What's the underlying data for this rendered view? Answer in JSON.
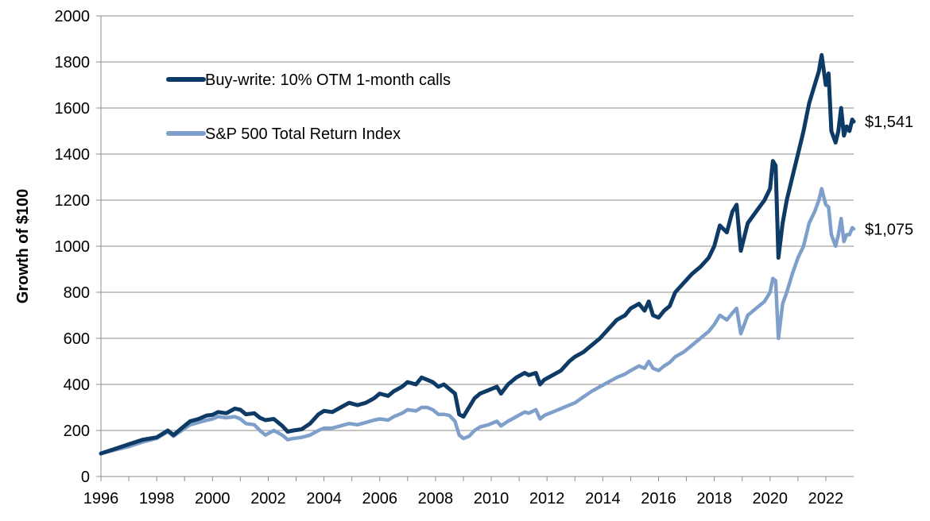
{
  "chart_data": {
    "type": "line",
    "title": "",
    "xlabel": "",
    "ylabel": "Growth of $100",
    "xlim": [
      1996,
      2023
    ],
    "ylim": [
      0,
      2000
    ],
    "x_ticks": [
      "1996",
      "1998",
      "2000",
      "2002",
      "2004",
      "2006",
      "2008",
      "2010",
      "2012",
      "2014",
      "2016",
      "2018",
      "2020",
      "2022"
    ],
    "y_ticks": [
      "0",
      "200",
      "400",
      "600",
      "800",
      "1000",
      "1200",
      "1400",
      "1600",
      "1800",
      "2000"
    ],
    "grid": "horizontal",
    "legend_position": "top-left",
    "series": [
      {
        "name": "Buy-write: 10% OTM 1-month calls",
        "color": "#0e3a66",
        "end_label": "$1,541",
        "x": [
          1996.0,
          1996.5,
          1997.0,
          1997.5,
          1998.0,
          1998.4,
          1998.6,
          1998.9,
          1999.2,
          1999.5,
          1999.8,
          2000.0,
          2000.2,
          2000.5,
          2000.8,
          2001.0,
          2001.2,
          2001.5,
          2001.7,
          2001.9,
          2002.2,
          2002.5,
          2002.7,
          2002.9,
          2003.2,
          2003.5,
          2003.8,
          2004.0,
          2004.3,
          2004.6,
          2004.9,
          2005.2,
          2005.5,
          2005.8,
          2006.0,
          2006.3,
          2006.5,
          2006.8,
          2007.0,
          2007.3,
          2007.5,
          2007.7,
          2007.9,
          2008.1,
          2008.3,
          2008.5,
          2008.7,
          2008.85,
          2009.0,
          2009.2,
          2009.4,
          2009.6,
          2009.9,
          2010.2,
          2010.35,
          2010.6,
          2010.9,
          2011.2,
          2011.35,
          2011.6,
          2011.75,
          2011.9,
          2012.2,
          2012.5,
          2012.8,
          2013.0,
          2013.3,
          2013.6,
          2013.9,
          2014.2,
          2014.5,
          2014.8,
          2015.0,
          2015.3,
          2015.5,
          2015.65,
          2015.8,
          2016.0,
          2016.2,
          2016.4,
          2016.6,
          2016.9,
          2017.2,
          2017.5,
          2017.8,
          2018.0,
          2018.2,
          2018.45,
          2018.65,
          2018.8,
          2018.95,
          2019.2,
          2019.5,
          2019.8,
          2020.0,
          2020.1,
          2020.2,
          2020.3,
          2020.45,
          2020.6,
          2020.8,
          2021.0,
          2021.2,
          2021.4,
          2021.6,
          2021.75,
          2021.85,
          2022.0,
          2022.1,
          2022.2,
          2022.35,
          2022.45,
          2022.55,
          2022.65,
          2022.75,
          2022.85,
          2022.95,
          2023.0
        ],
        "values": [
          100,
          120,
          140,
          160,
          170,
          200,
          180,
          210,
          240,
          250,
          265,
          268,
          280,
          275,
          295,
          290,
          270,
          275,
          255,
          245,
          250,
          220,
          195,
          200,
          205,
          230,
          270,
          285,
          280,
          300,
          320,
          310,
          320,
          340,
          360,
          350,
          370,
          390,
          410,
          400,
          430,
          420,
          410,
          390,
          400,
          380,
          360,
          270,
          260,
          300,
          340,
          360,
          375,
          390,
          360,
          400,
          430,
          450,
          440,
          450,
          400,
          420,
          440,
          460,
          500,
          520,
          540,
          570,
          600,
          640,
          680,
          700,
          730,
          750,
          720,
          760,
          700,
          690,
          720,
          740,
          800,
          840,
          880,
          910,
          950,
          1000,
          1090,
          1060,
          1150,
          1180,
          980,
          1100,
          1150,
          1200,
          1250,
          1370,
          1350,
          950,
          1100,
          1200,
          1300,
          1400,
          1500,
          1620,
          1700,
          1760,
          1830,
          1700,
          1750,
          1500,
          1450,
          1500,
          1600,
          1480,
          1520,
          1500,
          1550,
          1541
        ]
      },
      {
        "name": "S&P 500 Total Return Index",
        "color": "#7f9fcb",
        "end_label": "$1,075",
        "x": [
          1996.0,
          1996.5,
          1997.0,
          1997.5,
          1998.0,
          1998.4,
          1998.6,
          1998.9,
          1999.2,
          1999.5,
          1999.8,
          2000.0,
          2000.2,
          2000.5,
          2000.8,
          2001.0,
          2001.2,
          2001.5,
          2001.7,
          2001.9,
          2002.2,
          2002.5,
          2002.7,
          2002.9,
          2003.2,
          2003.5,
          2003.8,
          2004.0,
          2004.3,
          2004.6,
          2004.9,
          2005.2,
          2005.5,
          2005.8,
          2006.0,
          2006.3,
          2006.5,
          2006.8,
          2007.0,
          2007.3,
          2007.5,
          2007.7,
          2007.9,
          2008.1,
          2008.3,
          2008.5,
          2008.7,
          2008.85,
          2009.0,
          2009.2,
          2009.4,
          2009.6,
          2009.9,
          2010.2,
          2010.35,
          2010.6,
          2010.9,
          2011.2,
          2011.35,
          2011.6,
          2011.75,
          2011.9,
          2012.2,
          2012.5,
          2012.8,
          2013.0,
          2013.3,
          2013.6,
          2013.9,
          2014.2,
          2014.5,
          2014.8,
          2015.0,
          2015.3,
          2015.5,
          2015.65,
          2015.8,
          2016.0,
          2016.2,
          2016.4,
          2016.6,
          2016.9,
          2017.2,
          2017.5,
          2017.8,
          2018.0,
          2018.2,
          2018.45,
          2018.65,
          2018.8,
          2018.95,
          2019.2,
          2019.5,
          2019.8,
          2020.0,
          2020.1,
          2020.2,
          2020.3,
          2020.45,
          2020.6,
          2020.8,
          2021.0,
          2021.2,
          2021.4,
          2021.6,
          2021.75,
          2021.85,
          2022.0,
          2022.1,
          2022.2,
          2022.35,
          2022.45,
          2022.55,
          2022.65,
          2022.75,
          2022.85,
          2022.95,
          2023.0
        ],
        "values": [
          100,
          115,
          130,
          150,
          165,
          195,
          175,
          200,
          225,
          235,
          245,
          250,
          260,
          255,
          260,
          250,
          230,
          225,
          200,
          180,
          200,
          180,
          160,
          165,
          170,
          180,
          200,
          210,
          210,
          220,
          230,
          225,
          235,
          245,
          250,
          245,
          260,
          275,
          290,
          285,
          300,
          300,
          290,
          270,
          270,
          265,
          240,
          180,
          165,
          175,
          200,
          215,
          225,
          240,
          220,
          240,
          260,
          280,
          275,
          290,
          250,
          265,
          280,
          295,
          310,
          320,
          345,
          370,
          390,
          410,
          430,
          445,
          460,
          480,
          470,
          500,
          470,
          460,
          480,
          495,
          520,
          540,
          570,
          600,
          630,
          660,
          700,
          680,
          710,
          730,
          620,
          700,
          730,
          760,
          800,
          860,
          850,
          600,
          750,
          800,
          880,
          950,
          1000,
          1100,
          1150,
          1200,
          1250,
          1180,
          1170,
          1050,
          1000,
          1050,
          1120,
          1020,
          1050,
          1050,
          1080,
          1075
        ]
      }
    ]
  }
}
